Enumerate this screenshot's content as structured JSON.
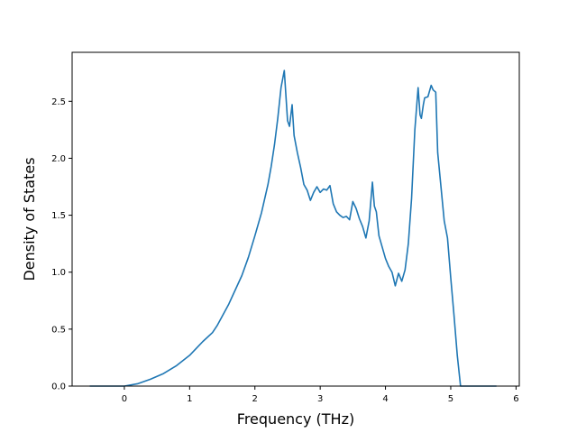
{
  "chart_data": {
    "type": "line",
    "title": "",
    "xlabel": "Frequency (THz)",
    "ylabel": "Density of States",
    "xlim": [
      -0.8,
      6.05
    ],
    "ylim": [
      0.0,
      2.93
    ],
    "xticks": [
      0,
      1,
      2,
      3,
      4,
      5,
      6
    ],
    "xtick_labels": [
      "0",
      "1",
      "2",
      "3",
      "4",
      "5",
      "6"
    ],
    "yticks": [
      0.0,
      0.5,
      1.0,
      1.5,
      2.0,
      2.5
    ],
    "ytick_labels": [
      "0.0",
      "0.5",
      "1.0",
      "1.5",
      "2.0",
      "2.5"
    ],
    "grid": false,
    "legend": "none",
    "series": [
      {
        "color": "#1f77b4",
        "x": [
          -0.53,
          -0.3,
          0.0,
          0.2,
          0.4,
          0.6,
          0.8,
          1.0,
          1.2,
          1.35,
          1.42,
          1.6,
          1.8,
          1.9,
          2.0,
          2.1,
          2.2,
          2.25,
          2.3,
          2.35,
          2.4,
          2.45,
          2.5,
          2.53,
          2.57,
          2.6,
          2.65,
          2.7,
          2.75,
          2.8,
          2.85,
          2.9,
          2.95,
          3.0,
          3.05,
          3.1,
          3.15,
          3.2,
          3.25,
          3.3,
          3.35,
          3.4,
          3.45,
          3.5,
          3.55,
          3.6,
          3.65,
          3.7,
          3.75,
          3.8,
          3.83,
          3.86,
          3.9,
          3.95,
          4.0,
          4.05,
          4.1,
          4.15,
          4.2,
          4.25,
          4.3,
          4.35,
          4.4,
          4.45,
          4.5,
          4.53,
          4.55,
          4.58,
          4.6,
          4.65,
          4.7,
          4.73,
          4.77,
          4.8,
          4.85,
          4.9,
          4.95,
          5.0,
          5.05,
          5.1,
          5.15,
          5.2,
          5.3,
          5.7
        ],
        "y": [
          0.0,
          0.0,
          0.0,
          0.02,
          0.06,
          0.11,
          0.18,
          0.27,
          0.39,
          0.47,
          0.53,
          0.72,
          0.97,
          1.13,
          1.32,
          1.52,
          1.77,
          1.93,
          2.12,
          2.35,
          2.62,
          2.77,
          2.33,
          2.28,
          2.47,
          2.2,
          2.05,
          1.92,
          1.77,
          1.72,
          1.63,
          1.7,
          1.75,
          1.7,
          1.73,
          1.72,
          1.76,
          1.6,
          1.53,
          1.5,
          1.48,
          1.49,
          1.46,
          1.62,
          1.56,
          1.47,
          1.4,
          1.3,
          1.45,
          1.79,
          1.58,
          1.53,
          1.32,
          1.22,
          1.12,
          1.05,
          1.0,
          0.88,
          0.99,
          0.92,
          1.02,
          1.25,
          1.65,
          2.25,
          2.62,
          2.38,
          2.35,
          2.47,
          2.53,
          2.54,
          2.64,
          2.6,
          2.58,
          2.05,
          1.75,
          1.45,
          1.3,
          0.95,
          0.62,
          0.27,
          0.0,
          0.0,
          0.0,
          0.0
        ]
      }
    ]
  }
}
